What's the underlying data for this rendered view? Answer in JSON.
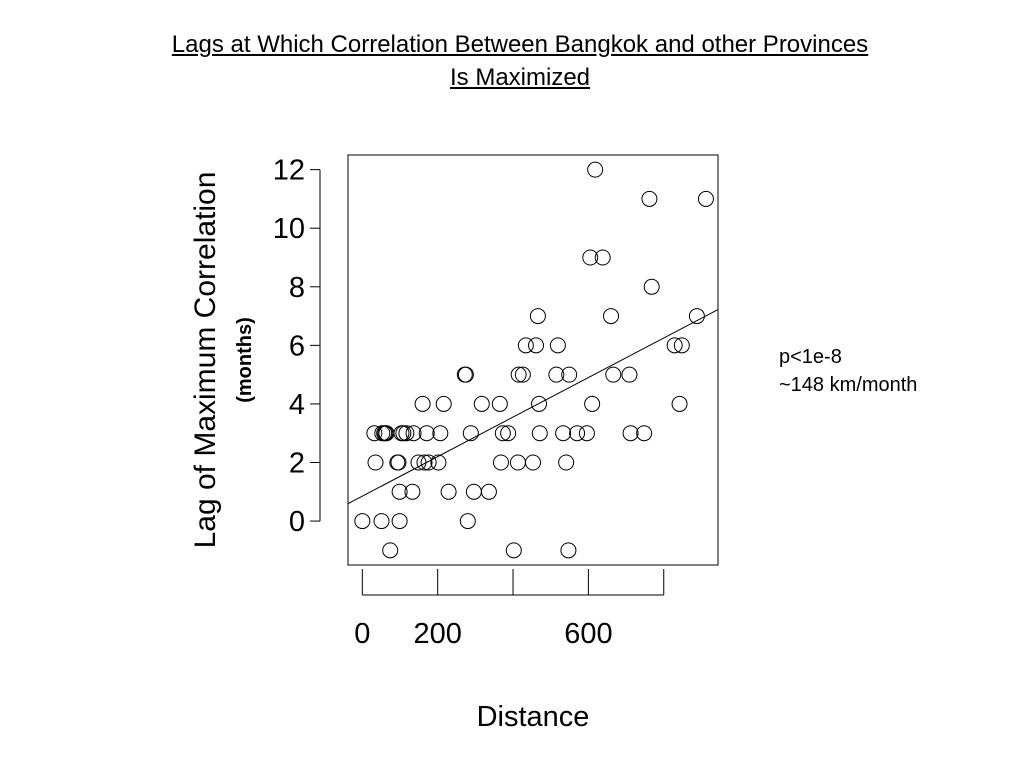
{
  "slide": {
    "title_line1": "Lags at Which Correlation Between Bangkok and other Provinces",
    "title_line2": "Is Maximized",
    "annotation_line1": "p<1e-8",
    "annotation_line2": "~148 km/month"
  },
  "chart_data": {
    "type": "scatter",
    "title": "Lags at Which Correlation Between Bangkok and other Provinces Is Maximized",
    "xlabel": "Distance",
    "ylabel": "Lag of Maximum Correlation",
    "ylabel_units": "(months)",
    "xlim": [
      -38,
      944
    ],
    "ylim": [
      -1.5,
      12.5
    ],
    "x_ticks": [
      0,
      200,
      400,
      600,
      800
    ],
    "x_tick_labels": [
      "0",
      "200",
      "",
      "600",
      ""
    ],
    "y_ticks": [
      0,
      2,
      4,
      6,
      8,
      10,
      12
    ],
    "y_tick_labels": [
      "0",
      "2",
      "4",
      "6",
      "8",
      "10",
      "12"
    ],
    "grid": false,
    "marker": "open-circle",
    "regression_line": {
      "intercept": 0.85,
      "slope": 0.00675
    },
    "points": [
      [
        0,
        0
      ],
      [
        32,
        3
      ],
      [
        35,
        2
      ],
      [
        51,
        0
      ],
      [
        53,
        3
      ],
      [
        58,
        3
      ],
      [
        61,
        3
      ],
      [
        64,
        3
      ],
      [
        74,
        -1
      ],
      [
        93,
        2
      ],
      [
        96,
        2
      ],
      [
        99,
        0
      ],
      [
        99,
        1
      ],
      [
        104,
        3
      ],
      [
        109,
        3
      ],
      [
        117,
        3
      ],
      [
        133,
        1
      ],
      [
        136,
        3
      ],
      [
        149,
        2
      ],
      [
        160,
        4
      ],
      [
        165,
        2
      ],
      [
        171,
        3
      ],
      [
        176,
        2
      ],
      [
        202,
        2
      ],
      [
        207,
        3
      ],
      [
        216,
        4
      ],
      [
        229,
        1
      ],
      [
        272,
        5
      ],
      [
        275,
        5
      ],
      [
        280,
        0
      ],
      [
        288,
        3
      ],
      [
        296,
        1
      ],
      [
        317,
        4
      ],
      [
        336,
        1
      ],
      [
        365,
        4
      ],
      [
        368,
        2
      ],
      [
        373,
        3
      ],
      [
        387,
        3
      ],
      [
        402,
        -1
      ],
      [
        413,
        2
      ],
      [
        415,
        5
      ],
      [
        426,
        5
      ],
      [
        434,
        6
      ],
      [
        453,
        2
      ],
      [
        461,
        6
      ],
      [
        466,
        7
      ],
      [
        469,
        4
      ],
      [
        471,
        3
      ],
      [
        515,
        5
      ],
      [
        519,
        6
      ],
      [
        533,
        3
      ],
      [
        541,
        2
      ],
      [
        547,
        -1
      ],
      [
        549,
        5
      ],
      [
        570,
        3
      ],
      [
        596,
        3
      ],
      [
        605,
        9
      ],
      [
        610,
        4
      ],
      [
        618,
        12
      ],
      [
        638,
        9
      ],
      [
        660,
        7
      ],
      [
        666,
        5
      ],
      [
        709,
        5
      ],
      [
        712,
        3
      ],
      [
        748,
        3
      ],
      [
        762,
        11
      ],
      [
        768,
        8
      ],
      [
        829,
        6
      ],
      [
        842,
        4
      ],
      [
        848,
        6
      ],
      [
        888,
        7
      ],
      [
        912,
        11
      ]
    ]
  }
}
